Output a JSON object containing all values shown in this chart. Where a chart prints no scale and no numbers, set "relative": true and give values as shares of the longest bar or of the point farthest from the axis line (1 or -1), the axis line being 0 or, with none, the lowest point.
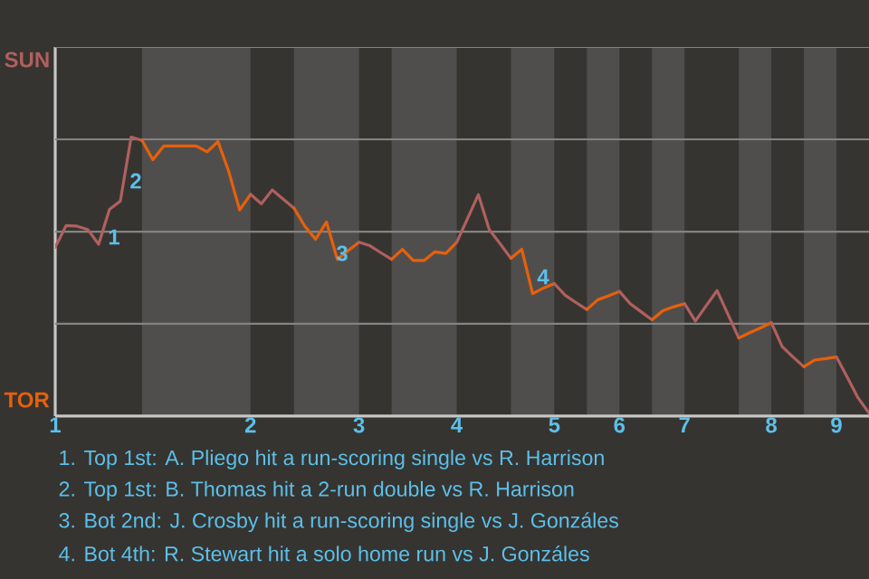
{
  "chart_data": {
    "type": "line",
    "relative": true,
    "categories": [
      "1",
      null,
      null,
      null,
      null,
      null,
      null,
      null,
      null,
      null,
      null,
      null,
      null,
      null,
      null,
      null,
      null,
      null,
      "2",
      null,
      null,
      null,
      null,
      null,
      null,
      null,
      null,
      null,
      "3",
      null,
      null,
      null,
      null,
      null,
      null,
      null,
      null,
      "4",
      null,
      null,
      null,
      null,
      null,
      null,
      null,
      null,
      "5",
      null,
      null,
      null,
      null,
      null,
      "6",
      null,
      null,
      null,
      null,
      null,
      "7",
      null,
      null,
      null,
      null,
      null,
      null,
      null,
      "8",
      null,
      null,
      null,
      null,
      null,
      "9",
      null,
      null,
      null
    ],
    "line_style": "solid",
    "ref_lines": [
      {
        "axis": "y",
        "value": 0.331,
        "color": "#858381"
      },
      {
        "axis": "y",
        "value": 0.661,
        "color": "#858381"
      },
      {
        "axis": "y",
        "value": 0.992,
        "color": "#858381"
      },
      {
        "axis": "y",
        "value": 1.323,
        "color": "#858381"
      }
    ],
    "series": [
      {
        "color": "#b0605f",
        "values": [
          0.605,
          0.683,
          0.681,
          0.669,
          0.616,
          0.741,
          0.771,
          1,
          0.988,
          null,
          null,
          null,
          null,
          null,
          null,
          null,
          null,
          null,
          null,
          null,
          null,
          null,
          null,
          null,
          null,
          null,
          null,
          null,
          null,
          null,
          null,
          null,
          null,
          null,
          null,
          null,
          null,
          null,
          null,
          null,
          null,
          null,
          null,
          null,
          null,
          null,
          null,
          null,
          null,
          null,
          null,
          null,
          null,
          null,
          null,
          null,
          null,
          null,
          null,
          null,
          null,
          null,
          null,
          null,
          null,
          null,
          null,
          null,
          null,
          null,
          null,
          null,
          null,
          null,
          null,
          null
        ]
      },
      {
        "color": "#e8600a",
        "values": [
          null,
          null,
          null,
          null,
          null,
          null,
          null,
          null,
          0.988,
          0.919,
          0.968,
          0.968,
          0.968,
          0.968,
          0.947,
          0.984,
          0.876,
          0.739,
          0.795,
          null,
          null,
          null,
          null,
          null,
          null,
          null,
          null,
          null,
          null,
          null,
          null,
          null,
          null,
          null,
          null,
          null,
          null,
          null,
          null,
          null,
          null,
          null,
          null,
          null,
          null,
          null,
          null,
          null,
          null,
          null,
          null,
          null,
          null,
          null,
          null,
          null,
          null,
          null,
          null,
          null,
          null,
          null,
          null,
          null,
          null,
          null,
          null,
          null,
          null,
          null,
          null,
          null,
          null,
          null,
          null,
          null
        ]
      },
      {
        "color": "#b0605f",
        "values": [
          null,
          null,
          null,
          null,
          null,
          null,
          null,
          null,
          null,
          null,
          null,
          null,
          null,
          null,
          null,
          null,
          null,
          null,
          0.795,
          0.761,
          0.811,
          0.778,
          0.746,
          null,
          null,
          null,
          null,
          null,
          null,
          null,
          null,
          null,
          null,
          null,
          null,
          null,
          null,
          null,
          null,
          null,
          null,
          null,
          null,
          null,
          null,
          null,
          null,
          null,
          null,
          null,
          null,
          null,
          null,
          null,
          null,
          null,
          null,
          null,
          null,
          null,
          null,
          null,
          null,
          null,
          null,
          null,
          null,
          null,
          null,
          null,
          null,
          null,
          null,
          null,
          null,
          null
        ]
      },
      {
        "color": "#e8600a",
        "values": [
          null,
          null,
          null,
          null,
          null,
          null,
          null,
          null,
          null,
          null,
          null,
          null,
          null,
          null,
          null,
          null,
          null,
          null,
          null,
          null,
          null,
          null,
          0.746,
          0.681,
          0.634,
          0.696,
          0.562,
          0.593,
          0.623,
          null,
          null,
          null,
          null,
          null,
          null,
          null,
          null,
          null,
          null,
          null,
          null,
          null,
          null,
          null,
          null,
          null,
          null,
          null,
          null,
          null,
          null,
          null,
          null,
          null,
          null,
          null,
          null,
          null,
          null,
          null,
          null,
          null,
          null,
          null,
          null,
          null,
          null,
          null,
          null,
          null,
          null,
          null,
          null,
          null,
          null,
          null
        ]
      },
      {
        "color": "#b0605f",
        "values": [
          null,
          null,
          null,
          null,
          null,
          null,
          null,
          null,
          null,
          null,
          null,
          null,
          null,
          null,
          null,
          null,
          null,
          null,
          null,
          null,
          null,
          null,
          null,
          null,
          null,
          null,
          null,
          null,
          0.623,
          0.611,
          0.586,
          0.562,
          null,
          null,
          null,
          null,
          null,
          null,
          null,
          null,
          null,
          null,
          null,
          null,
          null,
          null,
          null,
          null,
          null,
          null,
          null,
          null,
          null,
          null,
          null,
          null,
          null,
          null,
          null,
          null,
          null,
          null,
          null,
          null,
          null,
          null,
          null,
          null,
          null,
          null,
          null,
          null,
          null,
          null,
          null,
          null
        ]
      },
      {
        "color": "#e8600a",
        "values": [
          null,
          null,
          null,
          null,
          null,
          null,
          null,
          null,
          null,
          null,
          null,
          null,
          null,
          null,
          null,
          null,
          null,
          null,
          null,
          null,
          null,
          null,
          null,
          null,
          null,
          null,
          null,
          null,
          null,
          null,
          null,
          0.562,
          0.598,
          0.558,
          0.558,
          0.589,
          0.583,
          0.623,
          null,
          null,
          null,
          null,
          null,
          null,
          null,
          null,
          null,
          null,
          null,
          null,
          null,
          null,
          null,
          null,
          null,
          null,
          null,
          null,
          null,
          null,
          null,
          null,
          null,
          null,
          null,
          null,
          null,
          null,
          null,
          null,
          null,
          null,
          null,
          null,
          null,
          null
        ]
      },
      {
        "color": "#b0605f",
        "values": [
          null,
          null,
          null,
          null,
          null,
          null,
          null,
          null,
          null,
          null,
          null,
          null,
          null,
          null,
          null,
          null,
          null,
          null,
          null,
          null,
          null,
          null,
          null,
          null,
          null,
          null,
          null,
          null,
          null,
          null,
          null,
          null,
          null,
          null,
          null,
          null,
          null,
          0.623,
          0.708,
          0.794,
          0.669,
          0.618,
          0.566,
          null,
          null,
          null,
          null,
          null,
          null,
          null,
          null,
          null,
          null,
          null,
          null,
          null,
          null,
          null,
          null,
          null,
          null,
          null,
          null,
          null,
          null,
          null,
          null,
          null,
          null,
          null,
          null,
          null,
          null,
          null,
          null,
          null
        ]
      },
      {
        "color": "#e8600a",
        "values": [
          null,
          null,
          null,
          null,
          null,
          null,
          null,
          null,
          null,
          null,
          null,
          null,
          null,
          null,
          null,
          null,
          null,
          null,
          null,
          null,
          null,
          null,
          null,
          null,
          null,
          null,
          null,
          null,
          null,
          null,
          null,
          null,
          null,
          null,
          null,
          null,
          null,
          null,
          null,
          null,
          null,
          null,
          0.566,
          0.598,
          0.439,
          0.459,
          0.475,
          null,
          null,
          null,
          null,
          null,
          null,
          null,
          null,
          null,
          null,
          null,
          null,
          null,
          null,
          null,
          null,
          null,
          null,
          null,
          null,
          null,
          null,
          null,
          null,
          null,
          null,
          null,
          null,
          null
        ]
      },
      {
        "color": "#b0605f",
        "values": [
          null,
          null,
          null,
          null,
          null,
          null,
          null,
          null,
          null,
          null,
          null,
          null,
          null,
          null,
          null,
          null,
          null,
          null,
          null,
          null,
          null,
          null,
          null,
          null,
          null,
          null,
          null,
          null,
          null,
          null,
          null,
          null,
          null,
          null,
          null,
          null,
          null,
          null,
          null,
          null,
          null,
          null,
          null,
          null,
          null,
          null,
          0.475,
          0.433,
          0.407,
          0.382,
          null,
          null,
          null,
          null,
          null,
          null,
          null,
          null,
          null,
          null,
          null,
          null,
          null,
          null,
          null,
          null,
          null,
          null,
          null,
          null,
          null,
          null,
          null,
          null,
          null,
          null
        ]
      },
      {
        "color": "#e8600a",
        "values": [
          null,
          null,
          null,
          null,
          null,
          null,
          null,
          null,
          null,
          null,
          null,
          null,
          null,
          null,
          null,
          null,
          null,
          null,
          null,
          null,
          null,
          null,
          null,
          null,
          null,
          null,
          null,
          null,
          null,
          null,
          null,
          null,
          null,
          null,
          null,
          null,
          null,
          null,
          null,
          null,
          null,
          null,
          null,
          null,
          null,
          null,
          null,
          null,
          null,
          0.382,
          0.417,
          0.431,
          0.447,
          null,
          null,
          null,
          null,
          null,
          null,
          null,
          null,
          null,
          null,
          null,
          null,
          null,
          null,
          null,
          null,
          null,
          null,
          null,
          null,
          null,
          null,
          null
        ]
      },
      {
        "color": "#b0605f",
        "values": [
          null,
          null,
          null,
          null,
          null,
          null,
          null,
          null,
          null,
          null,
          null,
          null,
          null,
          null,
          null,
          null,
          null,
          null,
          null,
          null,
          null,
          null,
          null,
          null,
          null,
          null,
          null,
          null,
          null,
          null,
          null,
          null,
          null,
          null,
          null,
          null,
          null,
          null,
          null,
          null,
          null,
          null,
          null,
          null,
          null,
          null,
          null,
          null,
          null,
          null,
          null,
          null,
          0.447,
          0.403,
          0.374,
          0.345,
          null,
          null,
          null,
          null,
          null,
          null,
          null,
          null,
          null,
          null,
          null,
          null,
          null,
          null,
          null,
          null,
          null,
          null,
          null,
          null
        ]
      },
      {
        "color": "#e8600a",
        "values": [
          null,
          null,
          null,
          null,
          null,
          null,
          null,
          null,
          null,
          null,
          null,
          null,
          null,
          null,
          null,
          null,
          null,
          null,
          null,
          null,
          null,
          null,
          null,
          null,
          null,
          null,
          null,
          null,
          null,
          null,
          null,
          null,
          null,
          null,
          null,
          null,
          null,
          null,
          null,
          null,
          null,
          null,
          null,
          null,
          null,
          null,
          null,
          null,
          null,
          null,
          null,
          null,
          null,
          null,
          null,
          0.345,
          0.378,
          0.392,
          0.403,
          null,
          null,
          null,
          null,
          null,
          null,
          null,
          null,
          null,
          null,
          null,
          null,
          null,
          null,
          null,
          null,
          null
        ]
      },
      {
        "color": "#b0605f",
        "values": [
          null,
          null,
          null,
          null,
          null,
          null,
          null,
          null,
          null,
          null,
          null,
          null,
          null,
          null,
          null,
          null,
          null,
          null,
          null,
          null,
          null,
          null,
          null,
          null,
          null,
          null,
          null,
          null,
          null,
          null,
          null,
          null,
          null,
          null,
          null,
          null,
          null,
          null,
          null,
          null,
          null,
          null,
          null,
          null,
          null,
          null,
          null,
          null,
          null,
          null,
          null,
          null,
          null,
          null,
          null,
          null,
          null,
          null,
          0.403,
          0.341,
          0.396,
          0.45,
          0.365,
          0.28,
          null,
          null,
          null,
          null,
          null,
          null,
          null,
          null,
          null,
          null,
          null,
          null
        ]
      },
      {
        "color": "#e8600a",
        "values": [
          null,
          null,
          null,
          null,
          null,
          null,
          null,
          null,
          null,
          null,
          null,
          null,
          null,
          null,
          null,
          null,
          null,
          null,
          null,
          null,
          null,
          null,
          null,
          null,
          null,
          null,
          null,
          null,
          null,
          null,
          null,
          null,
          null,
          null,
          null,
          null,
          null,
          null,
          null,
          null,
          null,
          null,
          null,
          null,
          null,
          null,
          null,
          null,
          null,
          null,
          null,
          null,
          null,
          null,
          null,
          null,
          null,
          null,
          null,
          null,
          null,
          null,
          null,
          0.28,
          0.299,
          0.316,
          0.335,
          null,
          null,
          null,
          null,
          null,
          null,
          null,
          null,
          null
        ]
      },
      {
        "color": "#b0605f",
        "values": [
          null,
          null,
          null,
          null,
          null,
          null,
          null,
          null,
          null,
          null,
          null,
          null,
          null,
          null,
          null,
          null,
          null,
          null,
          null,
          null,
          null,
          null,
          null,
          null,
          null,
          null,
          null,
          null,
          null,
          null,
          null,
          null,
          null,
          null,
          null,
          null,
          null,
          null,
          null,
          null,
          null,
          null,
          null,
          null,
          null,
          null,
          null,
          null,
          null,
          null,
          null,
          null,
          null,
          null,
          null,
          null,
          null,
          null,
          null,
          null,
          null,
          null,
          null,
          null,
          null,
          null,
          0.335,
          0.249,
          0.212,
          0.177,
          null,
          null,
          null,
          null,
          null,
          null
        ]
      },
      {
        "color": "#e8600a",
        "values": [
          null,
          null,
          null,
          null,
          null,
          null,
          null,
          null,
          null,
          null,
          null,
          null,
          null,
          null,
          null,
          null,
          null,
          null,
          null,
          null,
          null,
          null,
          null,
          null,
          null,
          null,
          null,
          null,
          null,
          null,
          null,
          null,
          null,
          null,
          null,
          null,
          null,
          null,
          null,
          null,
          null,
          null,
          null,
          null,
          null,
          null,
          null,
          null,
          null,
          null,
          null,
          null,
          null,
          null,
          null,
          null,
          null,
          null,
          null,
          null,
          null,
          null,
          null,
          null,
          null,
          null,
          null,
          null,
          null,
          0.177,
          0.201,
          0.206,
          0.212,
          null,
          null,
          null
        ]
      },
      {
        "color": "#b0605f",
        "values": [
          null,
          null,
          null,
          null,
          null,
          null,
          null,
          null,
          null,
          null,
          null,
          null,
          null,
          null,
          null,
          null,
          null,
          null,
          null,
          null,
          null,
          null,
          null,
          null,
          null,
          null,
          null,
          null,
          null,
          null,
          null,
          null,
          null,
          null,
          null,
          null,
          null,
          null,
          null,
          null,
          null,
          null,
          null,
          null,
          null,
          null,
          null,
          null,
          null,
          null,
          null,
          null,
          null,
          null,
          null,
          null,
          null,
          null,
          null,
          null,
          null,
          null,
          null,
          null,
          null,
          null,
          null,
          null,
          null,
          null,
          null,
          null,
          0.212,
          0.139,
          0.065,
          0.011
        ]
      }
    ],
    "annotations": [
      "SUN",
      "TOR",
      "1",
      "2",
      "3",
      "4",
      "1. Top 1st: A. Pliego hit a run-scoring single vs R. Harrison",
      "2. Top 1st: B. Thomas hit a 2-run double vs R. Harrison",
      "3. Bot 2nd: J. Crosby hit a run-scoring single vs J. Gonzáles",
      "4. Bot 4th: R. Stewart hit a solo home run vs J. Gonzáles"
    ]
  }
}
